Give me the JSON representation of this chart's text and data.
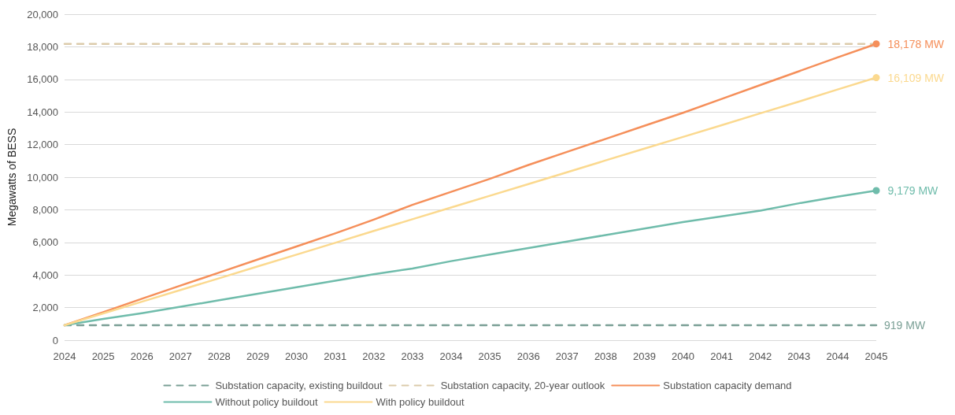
{
  "chart_data": {
    "type": "line",
    "ylabel": "Megawatts of BESS",
    "categories": [
      "2024",
      "2025",
      "2026",
      "2027",
      "2028",
      "2029",
      "2030",
      "2031",
      "2032",
      "2033",
      "2034",
      "2035",
      "2036",
      "2037",
      "2038",
      "2039",
      "2040",
      "2041",
      "2042",
      "2043",
      "2044",
      "2045"
    ],
    "series": [
      {
        "name": "Substation capacity, existing buildout",
        "color": "#7a9f95",
        "line_style": "dashed",
        "marker": "none",
        "values": [
          919,
          919,
          919,
          919,
          919,
          919,
          919,
          919,
          919,
          919,
          919,
          919,
          919,
          919,
          919,
          919,
          919,
          919,
          919,
          919,
          919,
          919
        ],
        "value_labels": [
          null,
          null,
          null,
          null,
          null,
          null,
          null,
          null,
          null,
          null,
          null,
          null,
          null,
          null,
          null,
          null,
          null,
          null,
          null,
          null,
          null,
          "919 MW"
        ]
      },
      {
        "name": "Substation capacity, 20-year outlook",
        "color": "#dccbab",
        "line_style": "dashed",
        "marker": "none",
        "values": [
          18178,
          18178,
          18178,
          18178,
          18178,
          18178,
          18178,
          18178,
          18178,
          18178,
          18178,
          18178,
          18178,
          18178,
          18178,
          18178,
          18178,
          18178,
          18178,
          18178,
          18178,
          18178
        ]
      },
      {
        "name": "Substation capacity demand",
        "color": "#f58f5a",
        "line_style": "solid",
        "values": [
          919,
          1720,
          2540,
          3350,
          4150,
          4950,
          5750,
          6550,
          7400,
          8300,
          9100,
          9900,
          10750,
          11550,
          12350,
          13150,
          13950,
          14800,
          15650,
          16500,
          17350,
          18178
        ],
        "value_labels": [
          null,
          null,
          null,
          null,
          null,
          null,
          null,
          null,
          null,
          null,
          null,
          null,
          null,
          null,
          null,
          null,
          null,
          null,
          null,
          null,
          null,
          "18,178 MW"
        ]
      },
      {
        "name": "Without policy buildout",
        "color": "#6fbcab",
        "line_style": "solid",
        "values": [
          919,
          1300,
          1650,
          2050,
          2450,
          2850,
          3250,
          3650,
          4050,
          4400,
          4850,
          5250,
          5650,
          6050,
          6450,
          6850,
          7250,
          7600,
          7950,
          8400,
          8800,
          9179
        ],
        "value_labels": [
          null,
          null,
          null,
          null,
          null,
          null,
          null,
          null,
          null,
          null,
          null,
          null,
          null,
          null,
          null,
          null,
          null,
          null,
          null,
          null,
          null,
          "9,179 MW"
        ]
      },
      {
        "name": "With policy buildout",
        "color": "#fbd98f",
        "line_style": "solid",
        "values": [
          919,
          1640,
          2360,
          3080,
          3800,
          4530,
          5250,
          5970,
          6700,
          7420,
          8140,
          8860,
          9580,
          10300,
          11030,
          11750,
          12470,
          13190,
          13920,
          14640,
          15380,
          16109
        ],
        "value_labels": [
          null,
          null,
          null,
          null,
          null,
          null,
          null,
          null,
          null,
          null,
          null,
          null,
          null,
          null,
          null,
          null,
          null,
          null,
          null,
          null,
          null,
          "16,109 MW"
        ]
      }
    ],
    "ylim": [
      0,
      20000
    ],
    "yticks": [
      0,
      {
        "value": 2000,
        "label": "2,000"
      },
      {
        "value": 4000,
        "label": "4,000"
      },
      {
        "value": 6000,
        "label": "6,000"
      },
      {
        "value": 8000,
        "label": "8,000"
      },
      {
        "value": 10000,
        "label": "10,000"
      },
      {
        "value": 12000,
        "label": "12,000"
      },
      {
        "value": 14000,
        "label": "14,000"
      },
      {
        "value": 16000,
        "label": "16,000"
      },
      {
        "value": 18000,
        "label": "18,000"
      },
      {
        "value": 20000,
        "label": "20,000"
      }
    ],
    "grid": "y",
    "legend": "bottom"
  }
}
